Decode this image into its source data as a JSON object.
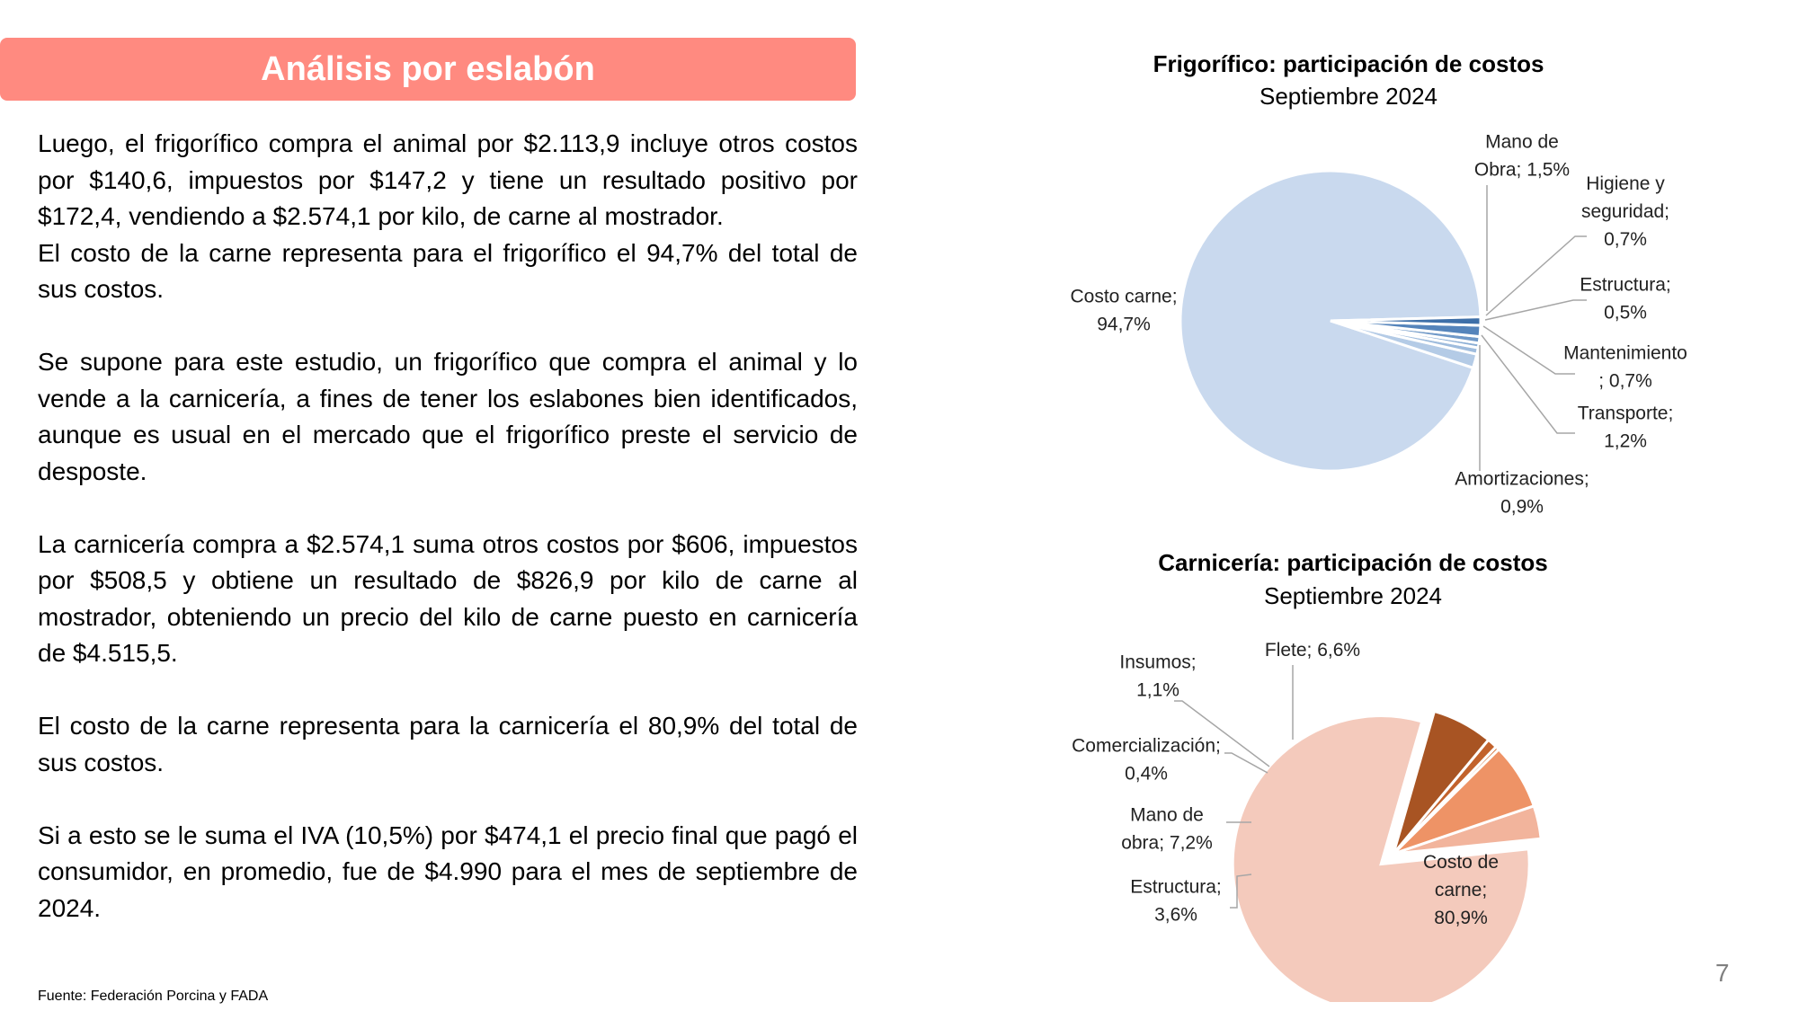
{
  "header": {
    "title": "Análisis por eslabón",
    "accent_color": "#FF8A80"
  },
  "body": {
    "p1a": "Luego, el frigorífico compra el animal por $2.113,9 incluye otros costos por $140,6, impuestos por $147,2 y tiene un resultado positivo por $172,4, vendiendo a $2.574,1 por kilo, de carne al mostrador.",
    "p1b": "El costo de la carne representa para el frigorífico el 94,7% del total de sus costos.",
    "p2": "Se supone para este estudio, un frigorífico que compra el animal y lo vende a la carnicería, a fines de tener los eslabones bien identificados, aunque es usual en el mercado que el frigorífico preste el servicio de desposte.",
    "p3": "La carnicería compra a $2.574,1 suma otros costos por $606, impuestos por $508,5 y obtiene un resultado de $826,9 por kilo de carne al mostrador, obteniendo un precio del kilo de carne puesto en carnicería de $4.515,5.",
    "p4": "El costo de la carne representa para la carnicería el 80,9% del total de sus costos.",
    "p5": "Si a esto se le suma el IVA (10,5%) por $474,1 el precio final que pagó el consumidor, en promedio, fue de $4.990 para el mes de septiembre de 2024."
  },
  "footer": {
    "source": "Fuente: Federación Porcina y FADA",
    "page_number": "7"
  },
  "chart_data": [
    {
      "type": "pie",
      "title": "Frigorífico: participación de costos",
      "subtitle": "Septiembre 2024",
      "slices": [
        {
          "name": "Costo carne",
          "value": 94.7,
          "label_lines": [
            "Costo carne;",
            "94,7%"
          ],
          "color": "#C9D9EE"
        },
        {
          "name": "Mano de Obra",
          "value": 1.5,
          "label_lines": [
            "Mano de",
            "Obra; 1,5%"
          ],
          "color": "#B4CBE6"
        },
        {
          "name": "Higiene y seguridad",
          "value": 0.7,
          "label_lines": [
            "Higiene y",
            "seguridad;",
            "0,7%"
          ],
          "color": "#9FBCDD"
        },
        {
          "name": "Estructura",
          "value": 0.5,
          "label_lines": [
            "Estructura;",
            "0,5%"
          ],
          "color": "#8AADD4"
        },
        {
          "name": "Mantenimiento",
          "value": 0.7,
          "label_lines": [
            "Mantenimiento",
            "; 0,7%"
          ],
          "color": "#7099C8"
        },
        {
          "name": "Transporte",
          "value": 1.2,
          "label_lines": [
            "Transporte;",
            "1,2%"
          ],
          "color": "#5584BB"
        },
        {
          "name": "Amortizaciones",
          "value": 0.9,
          "label_lines": [
            "Amortizaciones;",
            "0,9%"
          ],
          "color": "#3E6FA8"
        }
      ]
    },
    {
      "type": "pie",
      "title": "Carnicería: participación de costos",
      "subtitle": "Septiembre 2024",
      "slices": [
        {
          "name": "Costo de carne",
          "value": 80.9,
          "label_lines": [
            "Costo de",
            "carne;",
            "80,9%"
          ],
          "color": "#F4CABC"
        },
        {
          "name": "Estructura",
          "value": 3.6,
          "label_lines": [
            "Estructura;",
            "3,6%"
          ],
          "color": "#F2B49C"
        },
        {
          "name": "Mano de obra",
          "value": 7.2,
          "label_lines": [
            "Mano de",
            "obra; 7,2%"
          ],
          "color": "#EE9366"
        },
        {
          "name": "Comercialización",
          "value": 0.4,
          "label_lines": [
            "Comercialización;",
            "0,4%"
          ],
          "color": "#D8773F"
        },
        {
          "name": "Insumos",
          "value": 1.1,
          "label_lines": [
            "Insumos;",
            "1,1%"
          ],
          "color": "#C2622C"
        },
        {
          "name": "Flete",
          "value": 6.6,
          "label_lines": [
            "Flete; 6,6%"
          ],
          "color": "#A85423"
        }
      ]
    }
  ]
}
